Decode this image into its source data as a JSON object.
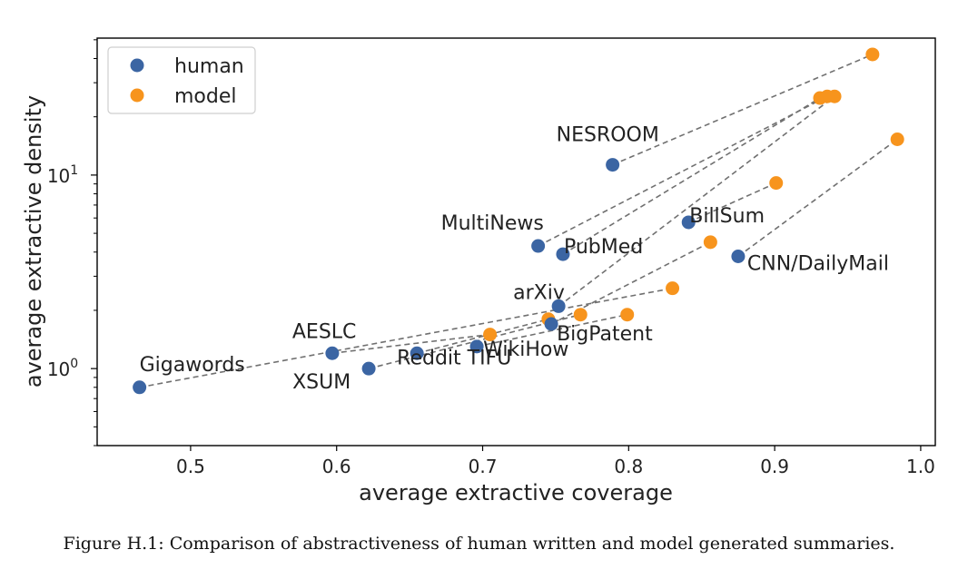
{
  "caption": "Figure H.1: Comparison of abstractiveness of human written and model generated summaries.",
  "chart_data": {
    "type": "scatter",
    "xlabel": "average extractive coverage",
    "ylabel": "average extractive density",
    "xlim": [
      0.436,
      1.01
    ],
    "ylim": [
      0.4,
      51
    ],
    "yscale": "log",
    "x_ticks": [
      0.5,
      0.6,
      0.7,
      0.8,
      0.9,
      1.0
    ],
    "x_tick_labels": [
      "0.5",
      "0.6",
      "0.7",
      "0.8",
      "0.9",
      "1.0"
    ],
    "y_ticks": [
      1,
      10
    ],
    "y_tick_labels_base": [
      "10",
      "10"
    ],
    "y_tick_labels_exp": [
      "0",
      "1"
    ],
    "grid": false,
    "legend_position": "top-left",
    "colors": {
      "human": "#3b65a3",
      "model": "#f7941d",
      "connector": "#707070"
    },
    "series": [
      {
        "name": "human",
        "points": [
          {
            "label": "Gigawords",
            "x": 0.465,
            "y": 0.8
          },
          {
            "label": "AESLC",
            "x": 0.597,
            "y": 1.2
          },
          {
            "label": "XSUM",
            "x": 0.622,
            "y": 1.0
          },
          {
            "label": "Reddit TIFU",
            "x": 0.655,
            "y": 1.2
          },
          {
            "label": "WikiHow",
            "x": 0.696,
            "y": 1.3
          },
          {
            "label": "BigPatent",
            "x": 0.747,
            "y": 1.7
          },
          {
            "label": "arXiv",
            "x": 0.752,
            "y": 2.1
          },
          {
            "label": "PubMed",
            "x": 0.755,
            "y": 3.9
          },
          {
            "label": "MultiNews",
            "x": 0.738,
            "y": 4.3
          },
          {
            "label": "NESROOM",
            "x": 0.789,
            "y": 11.3
          },
          {
            "label": "BillSum",
            "x": 0.841,
            "y": 5.7
          },
          {
            "label": "CNN/DailyMail",
            "x": 0.875,
            "y": 3.8
          }
        ]
      },
      {
        "name": "model",
        "points": [
          {
            "x": 0.83,
            "y": 2.6
          },
          {
            "x": 0.705,
            "y": 1.5
          },
          {
            "x": 0.767,
            "y": 1.9
          },
          {
            "x": 0.745,
            "y": 1.8
          },
          {
            "x": 0.799,
            "y": 1.9
          },
          {
            "x": 0.856,
            "y": 4.5
          },
          {
            "x": 0.941,
            "y": 25.5
          },
          {
            "x": 0.931,
            "y": 25.0
          },
          {
            "x": 0.936,
            "y": 25.5
          },
          {
            "x": 0.967,
            "y": 42.0
          },
          {
            "x": 0.901,
            "y": 9.1
          },
          {
            "x": 0.984,
            "y": 15.3
          }
        ]
      }
    ]
  }
}
